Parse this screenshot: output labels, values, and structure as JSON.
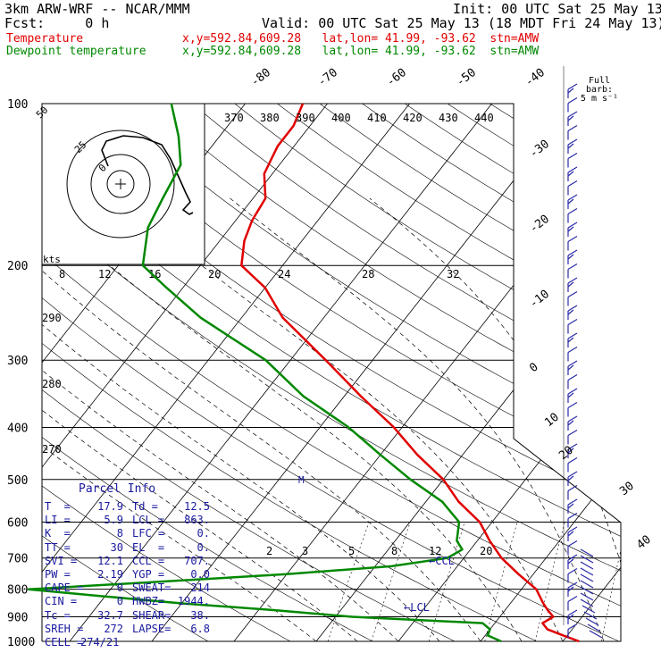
{
  "header": {
    "model": "3km ARW-WRF -- NCAR/MMM",
    "fcst": "Fcst:     0 h",
    "init": "Init: 00 UTC Sat 25 May 13",
    "valid": "Valid: 00 UTC Sat 25 May 13 (18 MDT Fri 24 May 13)",
    "temp_label": "Temperature",
    "temp_loc": "x,y=592.84,609.28   lat,lon= 41.99, -93.62  stn=AMW",
    "dew_label": "Dewpoint temperature",
    "dew_loc": "x,y=592.84,609.28   lat,lon= 41.99, -93.62  stn=AMW",
    "full_barb": "Full barb:",
    "full_barb_units": "5 m s⁻¹"
  },
  "colors": {
    "temperature": "#e00000",
    "dewpoint": "#008800",
    "parcel": "#1a1aa0",
    "isobar": "#000000"
  },
  "chart_data": {
    "type": "line",
    "title": "",
    "pressure_levels": [
      100,
      200,
      300,
      400,
      500,
      600,
      700,
      800,
      900,
      1000
    ],
    "isotherm_labels": [
      -80,
      -70,
      -60,
      -50,
      -40,
      -30,
      -20,
      -10,
      0,
      10,
      20,
      30,
      40
    ],
    "theta_labels": [
      370,
      380,
      390,
      400,
      410,
      420,
      430,
      440
    ],
    "theta_left_labels": [
      290,
      280,
      270
    ],
    "hodo_speed_labels": [
      "50",
      "25",
      "0"
    ],
    "hodo_axis_label": "kts",
    "hodo_axis_values": [
      8,
      12,
      16,
      20,
      24,
      28,
      32
    ],
    "mixing_ratio_labels": [
      2,
      3,
      5,
      8,
      12,
      20
    ],
    "markers": [
      "M",
      "CCL",
      "LCL"
    ],
    "series": [
      {
        "name": "Temperature",
        "p": [
          1000,
          975,
          950,
          925,
          900,
          875,
          850,
          800,
          750,
          700,
          650,
          600,
          550,
          500,
          450,
          400,
          350,
          300,
          250,
          220,
          200,
          180,
          165,
          150,
          135,
          120,
          110,
          100
        ],
        "t": [
          22,
          19.5,
          17,
          15.8,
          16.5,
          15.2,
          14,
          11.8,
          8.2,
          4.6,
          1.5,
          -1.5,
          -6,
          -10,
          -15.5,
          -21,
          -28,
          -35.7,
          -45,
          -50,
          -55,
          -57,
          -58,
          -58.5,
          -61,
          -62,
          -62,
          -63
        ]
      },
      {
        "name": "Dewpoint temperature",
        "p": [
          1000,
          975,
          950,
          925,
          900,
          875,
          850,
          825,
          800,
          775,
          750,
          725,
          700,
          675,
          650,
          600,
          550,
          500,
          450,
          400,
          350,
          300,
          250,
          220,
          200,
          170,
          150,
          130,
          115,
          100
        ],
        "t": [
          12.5,
          10.3,
          10,
          8.5,
          -8,
          -18,
          -30,
          -40,
          -50,
          -35,
          -20,
          -8,
          -2,
          -1,
          -2.5,
          -4,
          -8,
          -14,
          -20,
          -26.5,
          -35,
          -43,
          -55,
          -62,
          -67,
          -70,
          -71,
          -72,
          -75,
          -79
        ]
      }
    ]
  },
  "parcel_info": {
    "title": "Parcel Info",
    "rows": [
      [
        "T  =",
        "17.9",
        "Td =",
        "12.5"
      ],
      [
        "LI =",
        "5.9",
        "LCL =",
        "863."
      ],
      [
        "K  =",
        "8",
        "LFC =",
        "0."
      ],
      [
        "TT =",
        "30",
        "EL  =",
        "0."
      ],
      [
        "SVI =",
        "12.1",
        "CCL =",
        "707."
      ],
      [
        "PW =",
        "2.19",
        "YGP =",
        "0.0"
      ],
      [
        "CAPE =",
        "0",
        "SWEAT=",
        "214"
      ],
      [
        "CIN =",
        "0",
        "HWBZ=",
        "1944."
      ],
      [
        "Tc =",
        "32.7",
        "SHEAR=",
        "38."
      ],
      [
        "SREH =",
        "272",
        "LAPSE=",
        "6.8"
      ],
      [
        "CELL =",
        "274/21",
        "",
        ""
      ]
    ]
  }
}
